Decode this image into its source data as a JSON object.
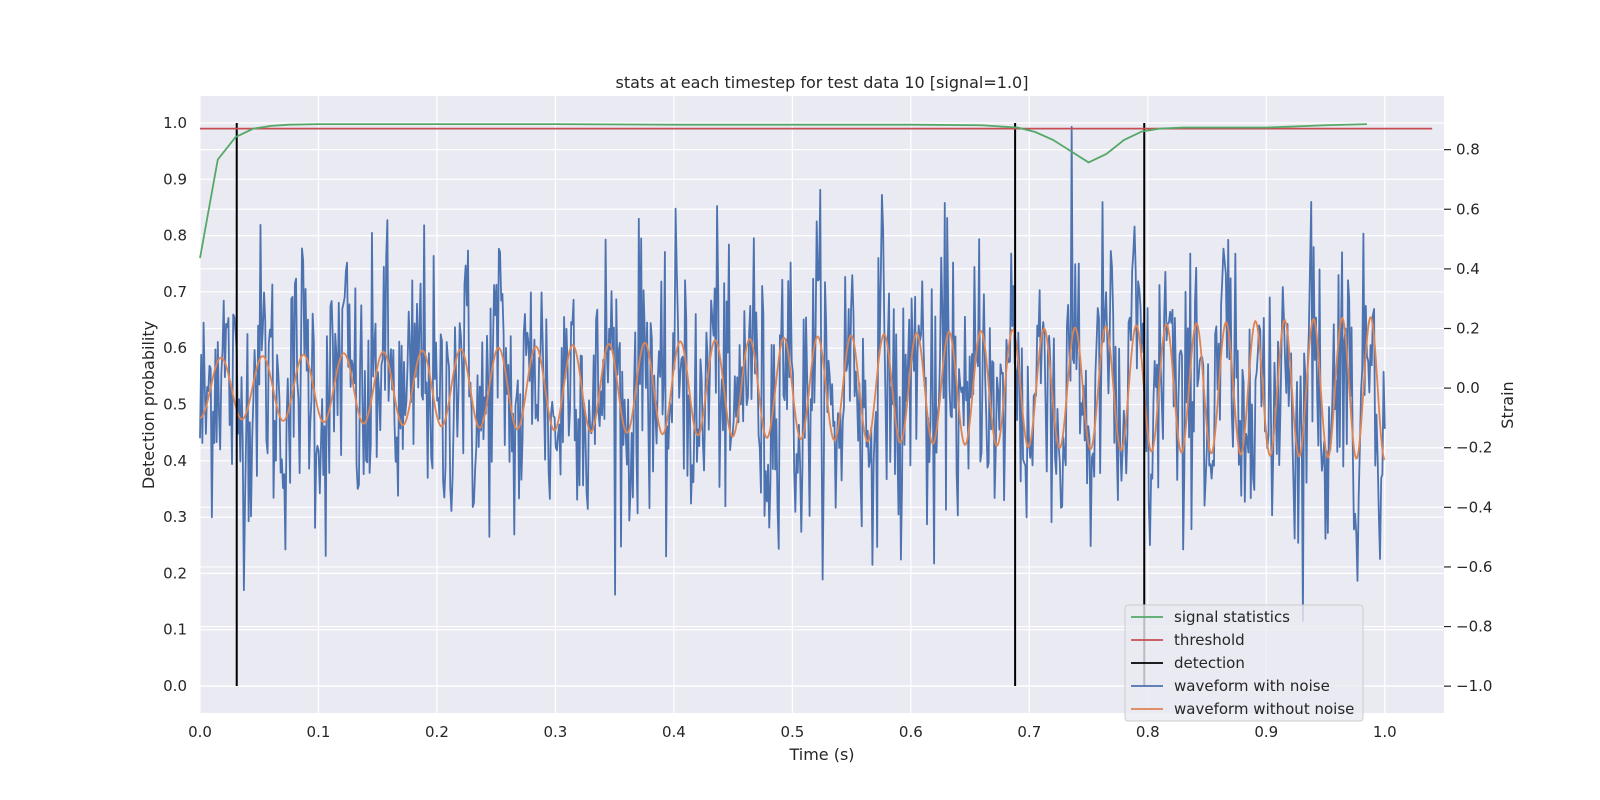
{
  "chart_data": {
    "type": "line",
    "title": "stats at each timestep for test data 10 [signal=1.0]",
    "xlabel": "Time (s)",
    "ylabel": "Detection probability",
    "y2label": "Strain",
    "xlim": [
      0.0,
      1.05
    ],
    "ylim": [
      -0.048,
      1.048
    ],
    "y2lim": [
      -1.09,
      0.98
    ],
    "xticks": [
      "0.0",
      "0.1",
      "0.2",
      "0.3",
      "0.4",
      "0.5",
      "0.6",
      "0.7",
      "0.8",
      "0.9",
      "1.0"
    ],
    "yticks": [
      "0.0",
      "0.1",
      "0.2",
      "0.3",
      "0.4",
      "0.5",
      "0.6",
      "0.7",
      "0.8",
      "0.9",
      "1.0"
    ],
    "y2ticks": [
      "−1.0",
      "−0.8",
      "−0.6",
      "−0.4",
      "−0.2",
      "0.0",
      "0.2",
      "0.4",
      "0.6",
      "0.8"
    ],
    "grid": true,
    "legend_position": "lower-right",
    "colors": {
      "signal_statistics": "#55a868",
      "threshold": "#c44e52",
      "detection": "#000000",
      "waveform_with_noise": "#4c72b0",
      "waveform_without_noise": "#dd8452",
      "plot_background": "#eaeaf2",
      "grid": "#ffffff"
    },
    "series": [
      {
        "name": "signal statistics",
        "axis": "left",
        "x": [
          0.0,
          0.015,
          0.03,
          0.045,
          0.06,
          0.075,
          0.1,
          0.2,
          0.3,
          0.4,
          0.5,
          0.6,
          0.66,
          0.69,
          0.705,
          0.72,
          0.735,
          0.75,
          0.765,
          0.78,
          0.795,
          0.81,
          0.83,
          0.86,
          0.9,
          0.95,
          0.985
        ],
        "y": [
          0.76,
          0.935,
          0.975,
          0.99,
          0.995,
          0.997,
          0.998,
          0.998,
          0.998,
          0.997,
          0.997,
          0.997,
          0.996,
          0.992,
          0.984,
          0.97,
          0.95,
          0.93,
          0.945,
          0.97,
          0.985,
          0.99,
          0.992,
          0.992,
          0.992,
          0.996,
          0.998
        ]
      },
      {
        "name": "threshold",
        "axis": "left",
        "x": [
          0.0,
          1.04
        ],
        "y": [
          0.99,
          0.99
        ]
      },
      {
        "name": "detection",
        "axis": "left",
        "x": [
          0.031,
          0.688,
          0.797
        ],
        "y_range": [
          0.0,
          1.0
        ]
      },
      {
        "name": "waveform with noise",
        "axis": "right",
        "x_range": [
          0.0,
          1.0
        ],
        "points": 1000,
        "amplitude_std": 0.22,
        "min": -1.0,
        "max": 0.88
      },
      {
        "name": "waveform without noise",
        "axis": "right",
        "x_range": [
          0.0,
          1.0
        ],
        "frequency_start_hz": 28,
        "frequency_end_hz": 42,
        "amplitude_start": 0.1,
        "amplitude_end": 0.24
      }
    ],
    "legend": [
      "signal statistics",
      "threshold",
      "detection",
      "waveform with noise",
      "waveform without noise"
    ]
  }
}
